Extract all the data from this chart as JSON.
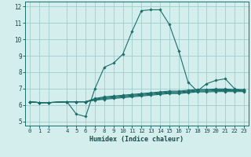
{
  "xlabel": "Humidex (Indice chaleur)",
  "line_color": "#1a6e6a",
  "bg_color": "#d4eeee",
  "grid_color": "#a0cccc",
  "xlim": [
    -0.5,
    23.5
  ],
  "ylim": [
    4.75,
    12.3
  ],
  "yticks": [
    5,
    6,
    7,
    8,
    9,
    10,
    11,
    12
  ],
  "xticks": [
    0,
    1,
    2,
    4,
    5,
    6,
    7,
    8,
    9,
    10,
    11,
    12,
    13,
    14,
    15,
    16,
    17,
    18,
    19,
    20,
    21,
    22,
    23
  ],
  "xtick_labels": [
    "0",
    "1",
    "2",
    "4",
    "5",
    "6",
    "7",
    "8",
    "9",
    "10",
    "11",
    "12",
    "13",
    "14",
    "15",
    "16",
    "17",
    "18",
    "19",
    "20",
    "21",
    "22",
    "23"
  ],
  "lines": [
    {
      "x": [
        0,
        1,
        2,
        4,
        5,
        6,
        7,
        8,
        9,
        10,
        11,
        12,
        13,
        14,
        15,
        16,
        17,
        18,
        19,
        20,
        21,
        22,
        23
      ],
      "y": [
        6.2,
        6.15,
        6.15,
        6.2,
        5.45,
        5.3,
        7.0,
        8.3,
        8.55,
        9.1,
        10.5,
        11.75,
        11.8,
        11.8,
        10.9,
        9.3,
        7.4,
        6.85,
        7.3,
        7.5,
        7.6,
        7.0,
        6.85
      ]
    },
    {
      "x": [
        0,
        1,
        2,
        4,
        5,
        6,
        7,
        8,
        9,
        10,
        11,
        12,
        13,
        14,
        15,
        16,
        17,
        18,
        19,
        20,
        21,
        22,
        23
      ],
      "y": [
        6.2,
        6.15,
        6.15,
        6.2,
        6.2,
        6.2,
        6.3,
        6.35,
        6.4,
        6.45,
        6.5,
        6.55,
        6.6,
        6.65,
        6.7,
        6.7,
        6.75,
        6.8,
        6.8,
        6.82,
        6.82,
        6.82,
        6.82
      ]
    },
    {
      "x": [
        0,
        1,
        2,
        4,
        5,
        6,
        7,
        8,
        9,
        10,
        11,
        12,
        13,
        14,
        15,
        16,
        17,
        18,
        19,
        20,
        21,
        22,
        23
      ],
      "y": [
        6.2,
        6.15,
        6.15,
        6.2,
        6.2,
        6.2,
        6.32,
        6.4,
        6.45,
        6.5,
        6.55,
        6.6,
        6.65,
        6.7,
        6.75,
        6.75,
        6.8,
        6.85,
        6.85,
        6.88,
        6.88,
        6.88,
        6.88
      ]
    },
    {
      "x": [
        0,
        1,
        2,
        4,
        5,
        6,
        7,
        8,
        9,
        10,
        11,
        12,
        13,
        14,
        15,
        16,
        17,
        18,
        19,
        20,
        21,
        22,
        23
      ],
      "y": [
        6.2,
        6.15,
        6.15,
        6.2,
        6.2,
        6.2,
        6.35,
        6.45,
        6.5,
        6.55,
        6.6,
        6.65,
        6.7,
        6.75,
        6.8,
        6.8,
        6.85,
        6.9,
        6.9,
        6.93,
        6.93,
        6.9,
        6.9
      ]
    },
    {
      "x": [
        0,
        1,
        2,
        4,
        5,
        6,
        7,
        8,
        9,
        10,
        11,
        12,
        13,
        14,
        15,
        16,
        17,
        18,
        19,
        20,
        21,
        22,
        23
      ],
      "y": [
        6.2,
        6.15,
        6.15,
        6.2,
        6.2,
        6.2,
        6.4,
        6.5,
        6.55,
        6.6,
        6.65,
        6.7,
        6.75,
        6.8,
        6.85,
        6.85,
        6.9,
        6.95,
        6.95,
        6.98,
        6.98,
        6.95,
        6.95
      ]
    }
  ]
}
